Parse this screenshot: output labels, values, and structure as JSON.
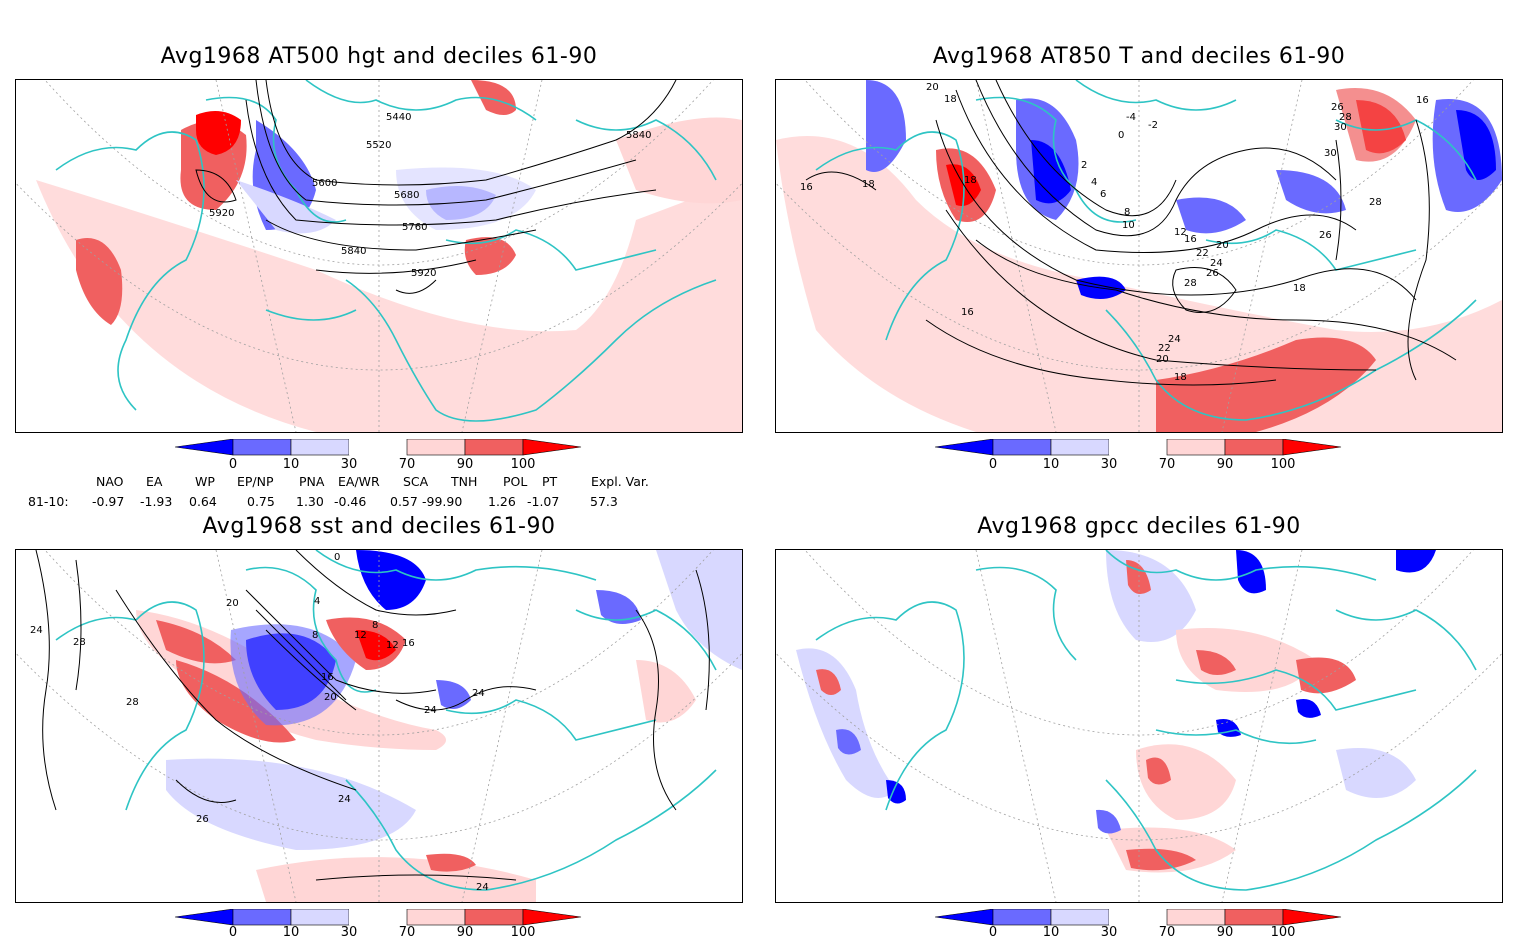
{
  "panels": [
    {
      "title": "Avg1968 AT500 hgt and deciles 61-90",
      "contour_labels": [
        "5440",
        "5520",
        "5600",
        "5680",
        "5760",
        "5840",
        "5840",
        "5920",
        "5920"
      ]
    },
    {
      "title": "Avg1968 AT850 T and deciles 61-90",
      "contour_labels": [
        "20",
        "18",
        "18",
        "16",
        "18",
        "-4",
        "-2",
        "0",
        "2",
        "4",
        "6",
        "8",
        "10",
        "12",
        "16",
        "20",
        "22",
        "24",
        "26",
        "28",
        "26",
        "28",
        "30",
        "30",
        "28",
        "26",
        "18",
        "16",
        "16",
        "24",
        "22",
        "20",
        "18"
      ]
    },
    {
      "title": "Avg1968 sst and deciles 61-90",
      "contour_labels": [
        "0",
        "4",
        "8",
        "12",
        "16",
        "20",
        "24",
        "24",
        "24",
        "28",
        "28",
        "24",
        "26",
        "20",
        "8",
        "12",
        "16",
        "24"
      ]
    },
    {
      "title": "Avg1968 gpcc deciles 61-90",
      "contour_labels": []
    }
  ],
  "colorbar": {
    "ticks": [
      "0",
      "10",
      "30",
      "70",
      "90",
      "100"
    ],
    "colors": [
      "#0000ff",
      "#6a6aff",
      "#d8d8ff",
      "#ffffff",
      "#ffd6d6",
      "#f06060",
      "#ff0000"
    ]
  },
  "indices": {
    "headers": [
      "NAO",
      "EA",
      "WP",
      "EP/NP",
      "PNA",
      "EA/WR",
      "SCA",
      "TNH",
      "POL",
      "PT",
      "Expl. Var."
    ],
    "row_label": "81-10:",
    "values": [
      "-0.97",
      "-1.93",
      "0.64",
      "0.75",
      "1.30",
      "-0.46",
      "0.57",
      "-99.90",
      "1.26",
      "-1.07",
      "57.3"
    ]
  },
  "style": {
    "coast_color": "#2ec4c4",
    "graticule_color": "#a0a0a0"
  }
}
